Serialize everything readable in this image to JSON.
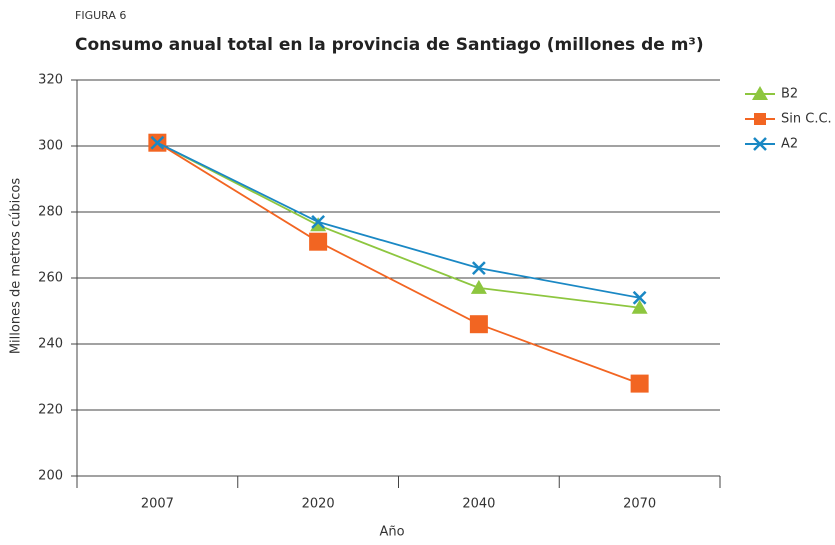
{
  "chart_data": {
    "type": "line",
    "figure_label": "FIGURA 6",
    "title": "Consumo anual total en la provincia de Santiago (millones de m³)",
    "x_label": "Año",
    "y_label": "Millones de metros cúbicos",
    "categories": [
      "2007",
      "2020",
      "2040",
      "2070"
    ],
    "series": [
      {
        "name": "B2",
        "color": "#8dc63f",
        "marker": "triangle",
        "values": [
          301,
          276,
          257,
          251
        ]
      },
      {
        "name": "Sin C.C.",
        "color": "#f26522",
        "marker": "square",
        "values": [
          301,
          271,
          246,
          228
        ]
      },
      {
        "name": "A2",
        "color": "#1a88c4",
        "marker": "x",
        "values": [
          301,
          277,
          263,
          254
        ]
      }
    ],
    "ylim": [
      200,
      320
    ],
    "yticks": [
      200,
      220,
      240,
      260,
      280,
      300,
      320
    ],
    "grid": true,
    "legend": "right"
  }
}
